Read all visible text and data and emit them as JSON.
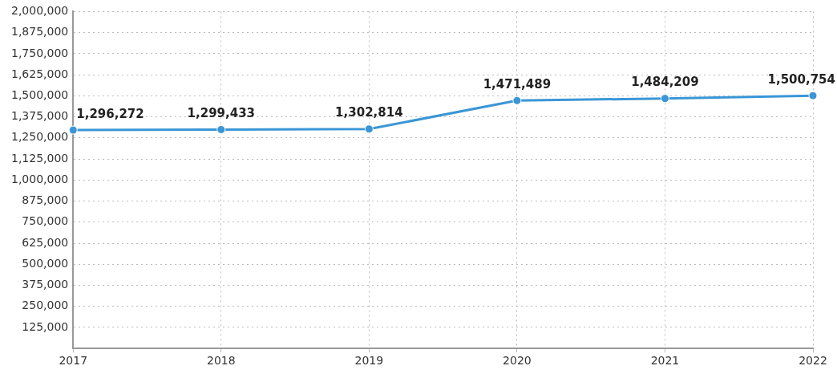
{
  "chart_data": {
    "type": "line",
    "categories": [
      "2017",
      "2018",
      "2019",
      "2020",
      "2021",
      "2022"
    ],
    "series": [
      {
        "color": "#3a96d6",
        "values": [
          1296272,
          1299433,
          1302814,
          1471489,
          1484209,
          1500754
        ],
        "value_labels": [
          "1,296,272",
          "1,299,433",
          "1,302,814",
          "1,471,489",
          "1,484,209",
          "1,500,754"
        ]
      }
    ],
    "ylim": [
      0,
      2000000
    ],
    "yticks": [
      {
        "value": 125000,
        "label": "125,000"
      },
      {
        "value": 250000,
        "label": "250,000"
      },
      {
        "value": 375000,
        "label": "375,000"
      },
      {
        "value": 500000,
        "label": "500,000"
      },
      {
        "value": 625000,
        "label": "625,000"
      },
      {
        "value": 750000,
        "label": "750,000"
      },
      {
        "value": 875000,
        "label": "875,000"
      },
      {
        "value": 1000000,
        "label": "1,000,000"
      },
      {
        "value": 1125000,
        "label": "1,125,000"
      },
      {
        "value": 1250000,
        "label": "1,250,000"
      },
      {
        "value": 1375000,
        "label": "1,375,000"
      },
      {
        "value": 1500000,
        "label": "1,500,000"
      },
      {
        "value": 1625000,
        "label": "1,625,000"
      },
      {
        "value": 1750000,
        "label": "1,750,000"
      },
      {
        "value": 1875000,
        "label": "1,875,000"
      },
      {
        "value": 2000000,
        "label": "2,000,000"
      }
    ],
    "grid": true,
    "legend": false,
    "marker": "circle",
    "line_style": "solid"
  }
}
